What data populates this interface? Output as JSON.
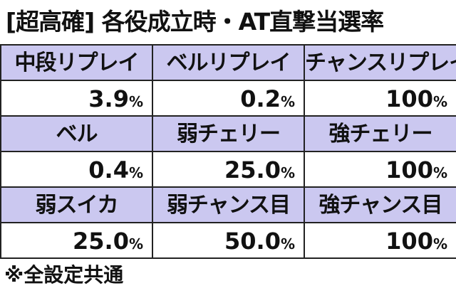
{
  "title": "[超高確] 各役成立時・AT直撃当選率",
  "table": {
    "rows": [
      [
        "中段リプレイ",
        "ベルリプレイ",
        "チャンスリプレイ"
      ],
      [
        {
          "value": "3.9",
          "unit": "%"
        },
        {
          "value": "0.2",
          "unit": "%"
        },
        {
          "value": "100",
          "unit": "%"
        }
      ],
      [
        "ベル",
        "弱チェリー",
        "強チェリー"
      ],
      [
        {
          "value": "0.4",
          "unit": "%"
        },
        {
          "value": "25.0",
          "unit": "%"
        },
        {
          "value": "100",
          "unit": "%"
        }
      ],
      [
        "弱スイカ",
        "弱チャンス目",
        "強チャンス目"
      ],
      [
        {
          "value": "25.0",
          "unit": "%"
        },
        {
          "value": "50.0",
          "unit": "%"
        },
        {
          "value": "100",
          "unit": "%"
        }
      ]
    ]
  },
  "footnote": "※全設定共通"
}
